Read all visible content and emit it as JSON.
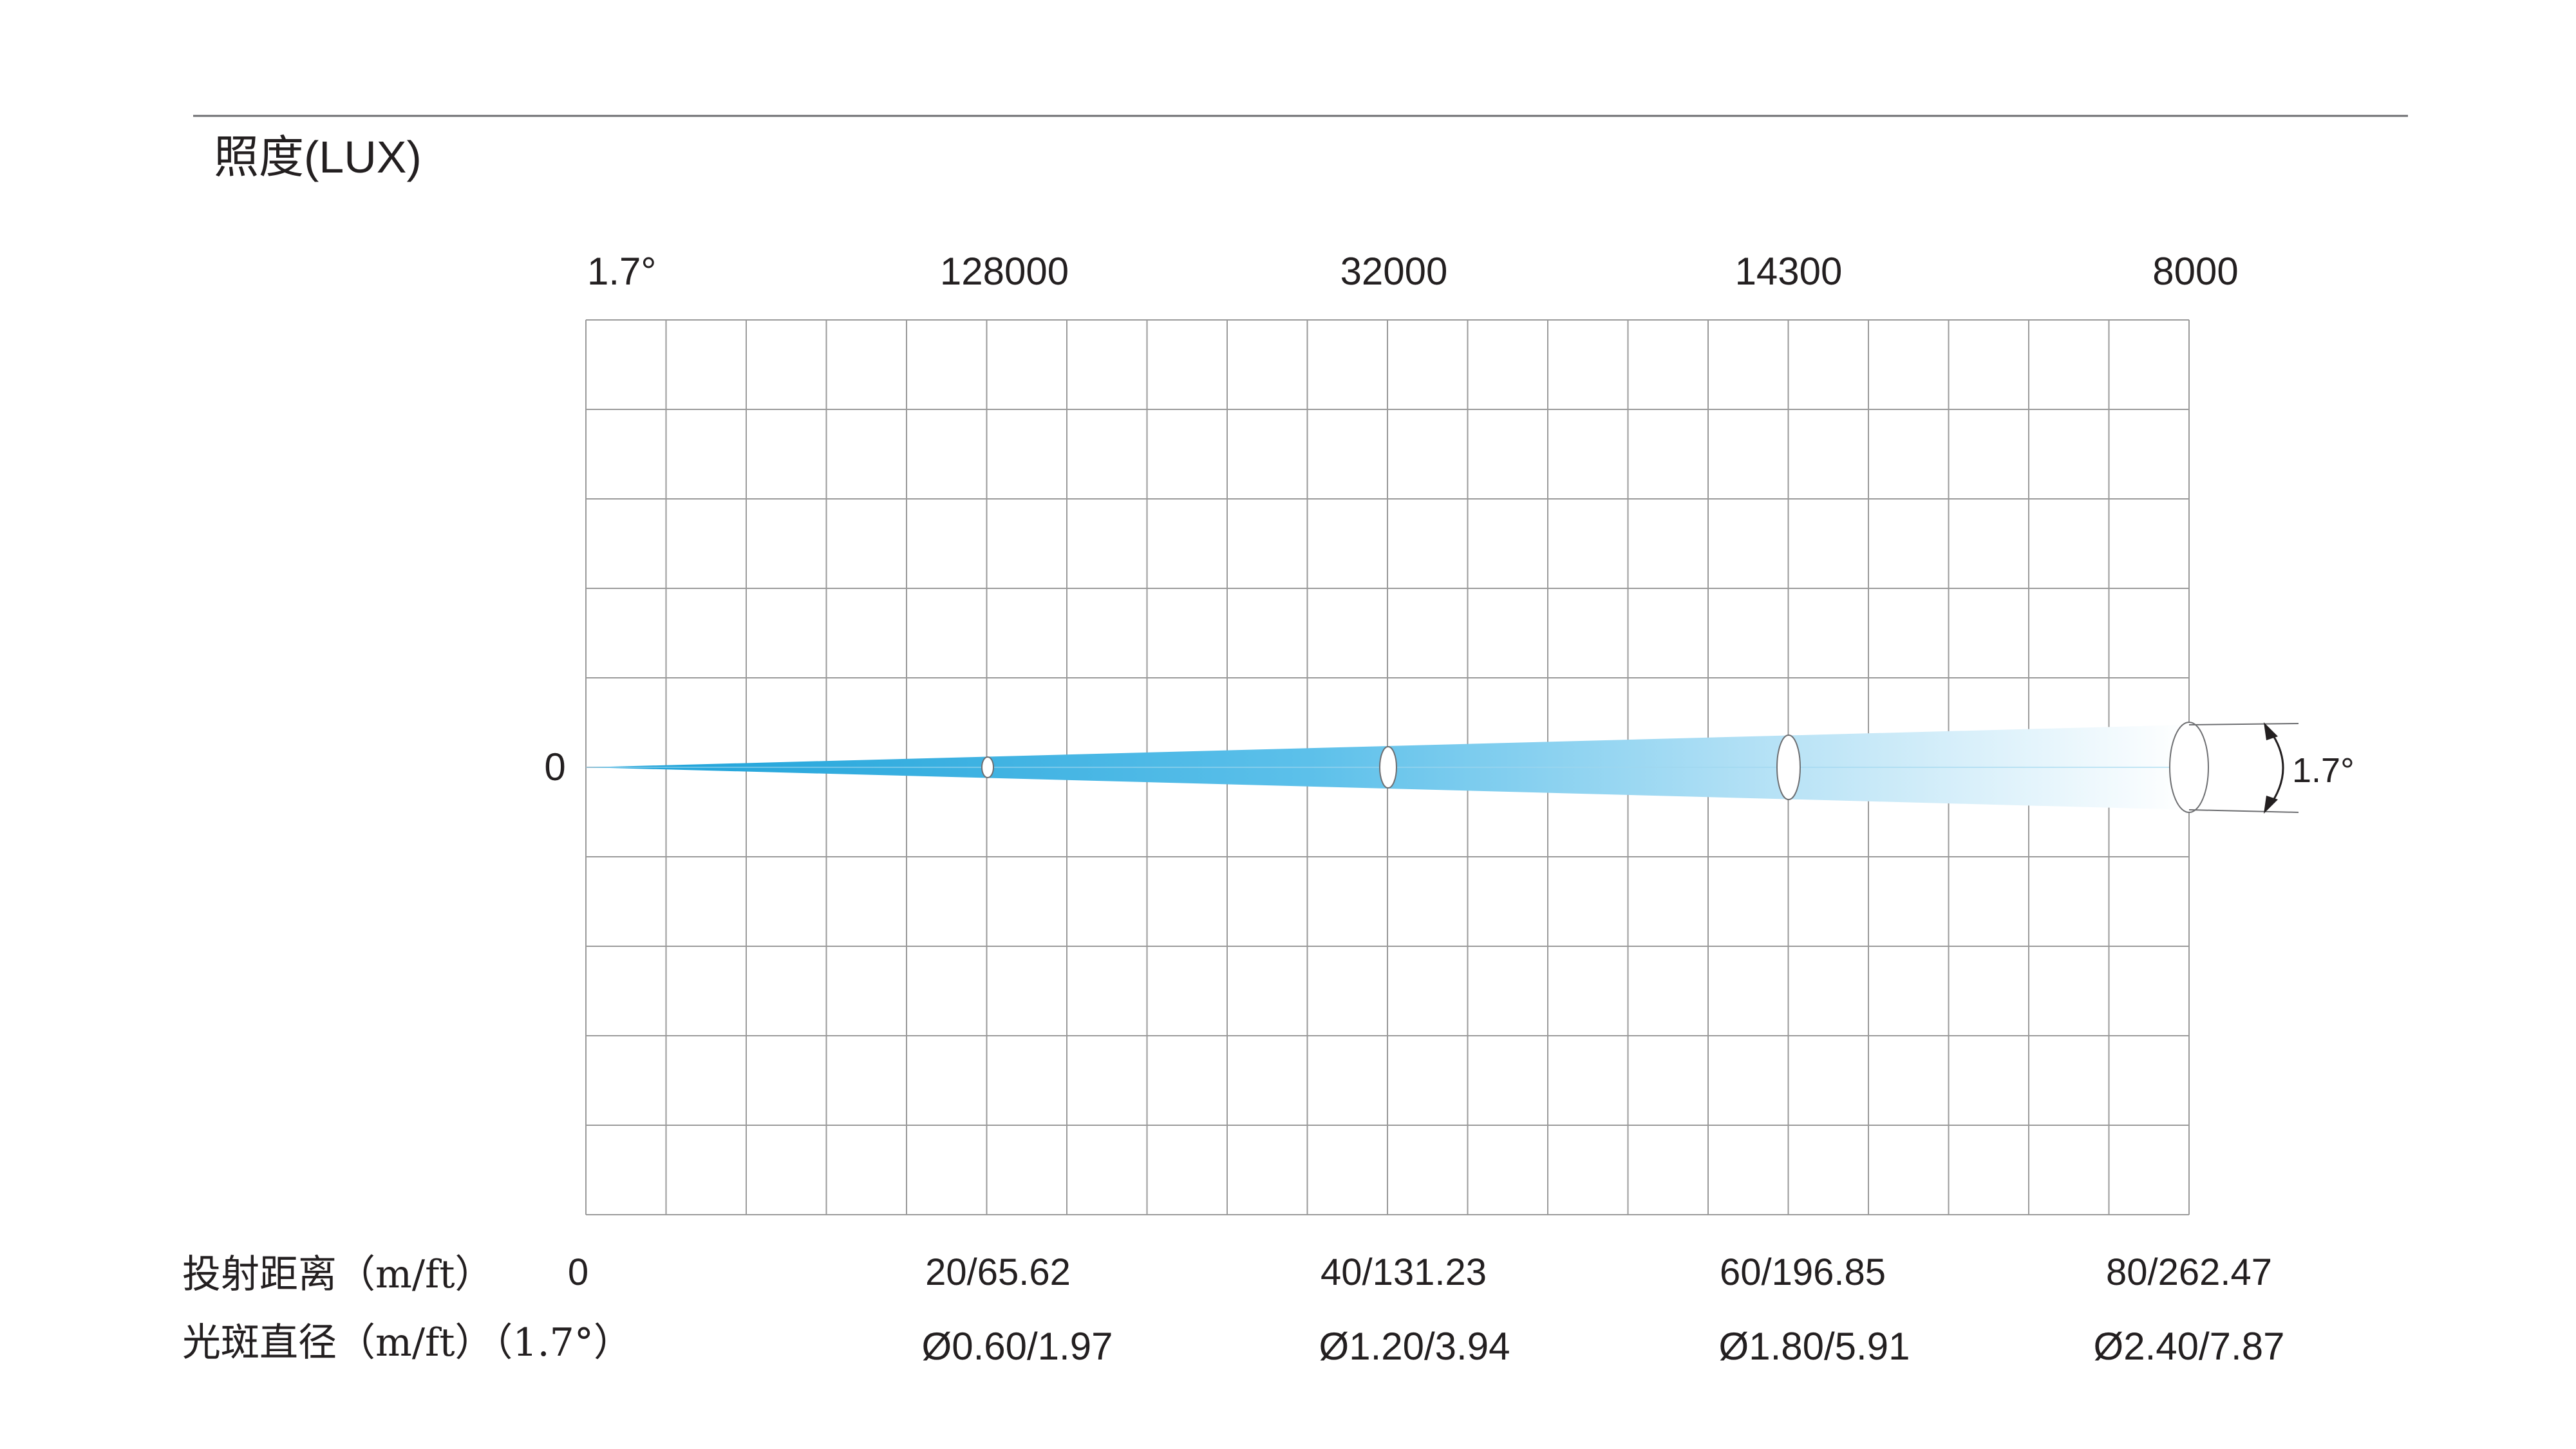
{
  "title": "照度(LUX)",
  "beam_angle_label": "1.7°",
  "axis_zero_label": "0",
  "illuminance_labels": [
    "128000",
    "32000",
    "14300",
    "8000"
  ],
  "distance_row": {
    "label": "投射距离（m/ft）",
    "values": [
      "0",
      "20/65.62",
      "40/131.23",
      "60/196.85",
      "80/262.47"
    ]
  },
  "diameter_row": {
    "label": "光斑直径（m/ft）（1.7°）",
    "values": [
      "Ø0.60/1.97",
      "Ø1.20/3.94",
      "Ø1.80/5.91",
      "Ø2.40/7.87"
    ]
  },
  "angle_annotation": "1.7°",
  "colors": {
    "beam_start": "#1ba1d8",
    "beam_end": "#ffffff",
    "grid": "#9a9a9a",
    "text": "#231f20"
  }
}
